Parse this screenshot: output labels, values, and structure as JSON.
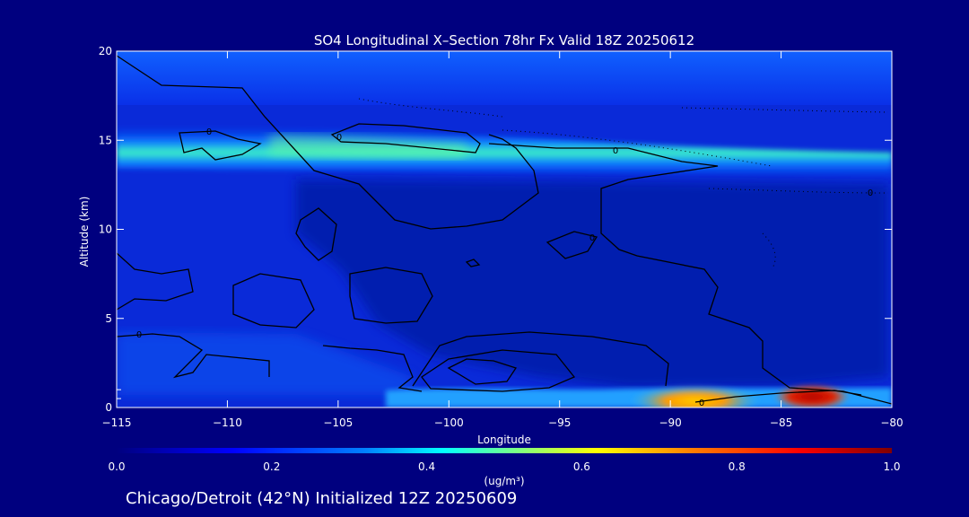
{
  "chart_data": {
    "type": "heatmap",
    "title": "SO4 Longitudinal X–Section 78hr  Fx Valid 18Z 20250612",
    "xlabel": "Longitude",
    "ylabel": "Altitude (km)",
    "xlim": [
      -115,
      -80
    ],
    "ylim": [
      0,
      20
    ],
    "x_ticks": [
      -115,
      -110,
      -105,
      -100,
      -95,
      -90,
      -85,
      -80
    ],
    "x_tick_labels": [
      "−115",
      "−110",
      "−105",
      "−100",
      "−95",
      "−90",
      "−85",
      "−80"
    ],
    "y_ticks": [
      0,
      5,
      10,
      15,
      20
    ],
    "y_tick_labels": [
      "0",
      "5",
      "10",
      "15",
      "20"
    ],
    "colorbar": {
      "min": 0.0,
      "max": 1.0,
      "ticks": [
        0.0,
        0.2,
        0.4,
        0.6,
        0.8,
        1.0
      ],
      "tick_labels": [
        "0.0",
        "0.2",
        "0.4",
        "0.6",
        "0.8",
        "1.0"
      ],
      "units_label": "(ug/m³)",
      "colors": [
        "#00007f",
        "#0000ff",
        "#0080ff",
        "#00ffff",
        "#80ff80",
        "#ffff00",
        "#ff8000",
        "#ff0000",
        "#7f0000"
      ]
    },
    "features": [
      {
        "lon": [
          -115,
          -80
        ],
        "alt": [
          14.8,
          14.8
        ],
        "conc": 0.45
      },
      {
        "lon": [
          -91,
          -82
        ],
        "alt": [
          0.5,
          1.0
        ],
        "conc": 0.8
      }
    ],
    "contour_labels": [
      "0",
      "0",
      "0",
      "0",
      "0",
      "0",
      "0"
    ],
    "grid": false,
    "legend": "colorbar-bottom"
  },
  "footer": {
    "caption": "Chicago/Detroit (42°N) Initialized 12Z 20250609"
  }
}
